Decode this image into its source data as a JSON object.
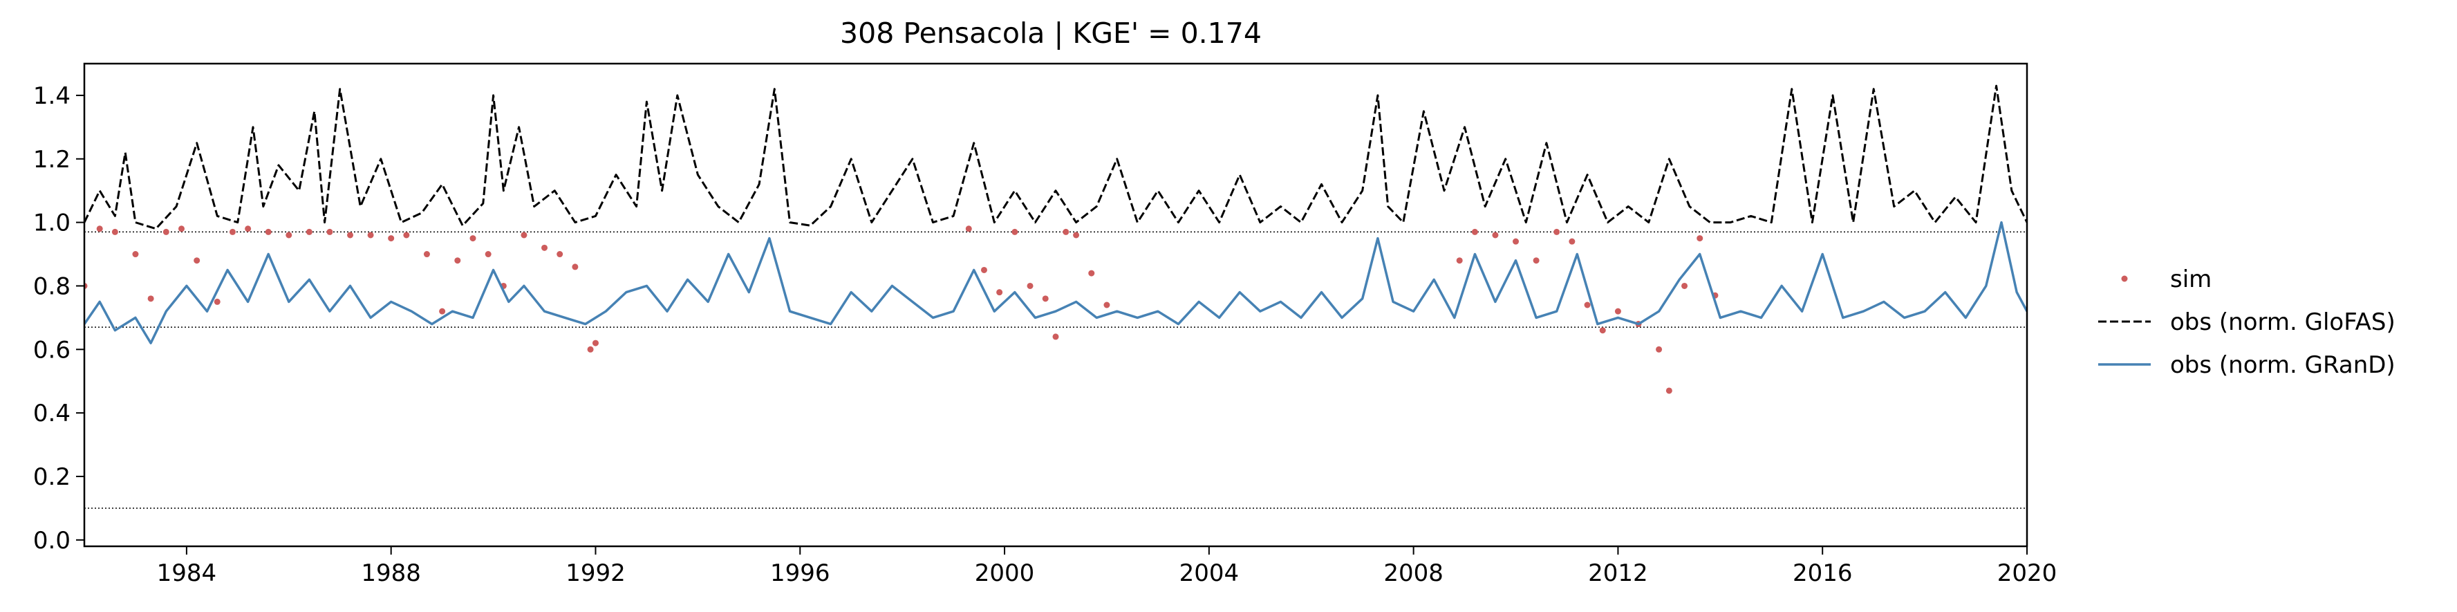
{
  "chart_data": {
    "type": "line",
    "title": "308  Pensacola | KGE' = 0.174",
    "xlabel": "",
    "ylabel": "",
    "xlim": [
      1982.0,
      2020.0
    ],
    "ylim": [
      -0.02,
      1.5
    ],
    "x_ticks": [
      1984,
      1988,
      1992,
      1996,
      2000,
      2004,
      2008,
      2012,
      2016,
      2020
    ],
    "x_tick_labels": [
      "1984",
      "1988",
      "1992",
      "1996",
      "2000",
      "2004",
      "2008",
      "2012",
      "2016",
      "2020"
    ],
    "y_ticks": [
      0.0,
      0.2,
      0.4,
      0.6,
      0.8,
      1.0,
      1.2,
      1.4
    ],
    "y_tick_labels": [
      "0.0",
      "0.2",
      "0.4",
      "0.6",
      "0.8",
      "1.0",
      "1.2",
      "1.4"
    ],
    "reference_lines": [
      0.97,
      0.67,
      0.1
    ],
    "grid": false,
    "legend_position": "outside-right",
    "legend": [
      {
        "label": "sim",
        "style": "dots",
        "color": "#cd5c5c"
      },
      {
        "label": "obs (norm. GloFAS)",
        "style": "dashed",
        "color": "#000000"
      },
      {
        "label": "obs (norm. GRanD)",
        "style": "solid",
        "color": "#4682b4"
      }
    ],
    "series": [
      {
        "name": "sim",
        "style": "dots",
        "color": "#cd5c5c",
        "x": [
          1982.0,
          1982.3,
          1982.6,
          1983.0,
          1983.3,
          1983.6,
          1983.9,
          1984.2,
          1984.6,
          1984.9,
          1985.2,
          1985.6,
          1986.0,
          1986.4,
          1986.8,
          1987.2,
          1987.6,
          1988.0,
          1988.3,
          1988.7,
          1989.0,
          1989.3,
          1989.6,
          1989.9,
          1990.2,
          1990.6,
          1991.0,
          1991.3,
          1991.6,
          1991.9,
          1992.0,
          1999.3,
          1999.6,
          1999.9,
          2000.2,
          2000.5,
          2000.8,
          2001.0,
          2001.2,
          2001.4,
          2001.7,
          2002.0,
          2008.9,
          2009.2,
          2009.6,
          2010.0,
          2010.4,
          2010.8,
          2011.1,
          2011.4,
          2011.7,
          2012.0,
          2012.4,
          2012.8,
          2013.0,
          2013.3,
          2013.6,
          2013.9
        ],
        "y": [
          0.8,
          0.98,
          0.97,
          0.9,
          0.76,
          0.97,
          0.98,
          0.88,
          0.75,
          0.97,
          0.98,
          0.97,
          0.96,
          0.97,
          0.97,
          0.96,
          0.96,
          0.95,
          0.96,
          0.9,
          0.72,
          0.88,
          0.95,
          0.9,
          0.8,
          0.96,
          0.92,
          0.9,
          0.86,
          0.6,
          0.62,
          0.98,
          0.85,
          0.78,
          0.97,
          0.8,
          0.76,
          0.64,
          0.97,
          0.96,
          0.84,
          0.74,
          0.88,
          0.97,
          0.96,
          0.94,
          0.88,
          0.97,
          0.94,
          0.74,
          0.66,
          0.72,
          0.68,
          0.6,
          0.47,
          0.8,
          0.95,
          0.77
        ]
      },
      {
        "name": "obs (norm. GloFAS)",
        "style": "dashed",
        "color": "#000000",
        "x": [
          1982.0,
          1982.3,
          1982.6,
          1982.8,
          1983.0,
          1983.4,
          1983.8,
          1984.2,
          1984.6,
          1985.0,
          1985.3,
          1985.5,
          1985.8,
          1986.2,
          1986.5,
          1986.7,
          1987.0,
          1987.4,
          1987.8,
          1988.2,
          1988.6,
          1989.0,
          1989.4,
          1989.8,
          1990.0,
          1990.2,
          1990.5,
          1990.8,
          1991.2,
          1991.6,
          1992.0,
          1992.4,
          1992.8,
          1993.0,
          1993.3,
          1993.6,
          1994.0,
          1994.4,
          1994.8,
          1995.2,
          1995.5,
          1995.8,
          1996.2,
          1996.6,
          1997.0,
          1997.4,
          1997.8,
          1998.2,
          1998.6,
          1999.0,
          1999.4,
          1999.8,
          2000.2,
          2000.6,
          2001.0,
          2001.4,
          2001.8,
          2002.2,
          2002.6,
          2003.0,
          2003.4,
          2003.8,
          2004.2,
          2004.6,
          2005.0,
          2005.4,
          2005.8,
          2006.2,
          2006.6,
          2007.0,
          2007.3,
          2007.5,
          2007.8,
          2008.2,
          2008.6,
          2009.0,
          2009.4,
          2009.8,
          2010.2,
          2010.6,
          2011.0,
          2011.4,
          2011.8,
          2012.2,
          2012.6,
          2013.0,
          2013.4,
          2013.8,
          2014.2,
          2014.6,
          2015.0,
          2015.4,
          2015.8,
          2016.2,
          2016.6,
          2017.0,
          2017.4,
          2017.8,
          2018.2,
          2018.6,
          2019.0,
          2019.4,
          2019.7,
          2020.0
        ],
        "y": [
          1.0,
          1.1,
          1.02,
          1.22,
          1.0,
          0.98,
          1.05,
          1.25,
          1.02,
          1.0,
          1.3,
          1.05,
          1.18,
          1.1,
          1.35,
          1.0,
          1.42,
          1.05,
          1.2,
          1.0,
          1.03,
          1.12,
          0.99,
          1.06,
          1.4,
          1.1,
          1.3,
          1.05,
          1.1,
          1.0,
          1.02,
          1.15,
          1.05,
          1.38,
          1.1,
          1.4,
          1.15,
          1.05,
          1.0,
          1.12,
          1.42,
          1.0,
          0.99,
          1.05,
          1.2,
          1.0,
          1.1,
          1.2,
          1.0,
          1.02,
          1.25,
          1.0,
          1.1,
          1.0,
          1.1,
          1.0,
          1.05,
          1.2,
          1.0,
          1.1,
          1.0,
          1.1,
          1.0,
          1.15,
          1.0,
          1.05,
          1.0,
          1.12,
          1.0,
          1.1,
          1.4,
          1.05,
          1.0,
          1.35,
          1.1,
          1.3,
          1.05,
          1.2,
          1.0,
          1.25,
          1.0,
          1.15,
          1.0,
          1.05,
          1.0,
          1.2,
          1.05,
          1.0,
          1.0,
          1.02,
          1.0,
          1.42,
          1.0,
          1.4,
          1.0,
          1.42,
          1.05,
          1.1,
          1.0,
          1.08,
          1.0,
          1.43,
          1.1,
          1.0
        ]
      },
      {
        "name": "obs (norm. GRanD)",
        "style": "solid",
        "color": "#4682b4",
        "x": [
          1982.0,
          1982.3,
          1982.6,
          1983.0,
          1983.3,
          1983.6,
          1984.0,
          1984.4,
          1984.8,
          1985.2,
          1985.6,
          1986.0,
          1986.4,
          1986.8,
          1987.2,
          1987.6,
          1988.0,
          1988.4,
          1988.8,
          1989.2,
          1989.6,
          1990.0,
          1990.3,
          1990.6,
          1991.0,
          1991.4,
          1991.8,
          1992.2,
          1992.6,
          1993.0,
          1993.4,
          1993.8,
          1994.2,
          1994.6,
          1995.0,
          1995.4,
          1995.8,
          1996.2,
          1996.6,
          1997.0,
          1997.4,
          1997.8,
          1998.2,
          1998.6,
          1999.0,
          1999.4,
          1999.8,
          2000.2,
          2000.6,
          2001.0,
          2001.4,
          2001.8,
          2002.2,
          2002.6,
          2003.0,
          2003.4,
          2003.8,
          2004.2,
          2004.6,
          2005.0,
          2005.4,
          2005.8,
          2006.2,
          2006.6,
          2007.0,
          2007.3,
          2007.6,
          2008.0,
          2008.4,
          2008.8,
          2009.2,
          2009.6,
          2010.0,
          2010.4,
          2010.8,
          2011.2,
          2011.6,
          2012.0,
          2012.4,
          2012.8,
          2013.2,
          2013.6,
          2014.0,
          2014.4,
          2014.8,
          2015.2,
          2015.6,
          2016.0,
          2016.4,
          2016.8,
          2017.2,
          2017.6,
          2018.0,
          2018.4,
          2018.8,
          2019.2,
          2019.5,
          2019.8,
          2020.0
        ],
        "y": [
          0.68,
          0.75,
          0.66,
          0.7,
          0.62,
          0.72,
          0.8,
          0.72,
          0.85,
          0.75,
          0.9,
          0.75,
          0.82,
          0.72,
          0.8,
          0.7,
          0.75,
          0.72,
          0.68,
          0.72,
          0.7,
          0.85,
          0.75,
          0.8,
          0.72,
          0.7,
          0.68,
          0.72,
          0.78,
          0.8,
          0.72,
          0.82,
          0.75,
          0.9,
          0.78,
          0.95,
          0.72,
          0.7,
          0.68,
          0.78,
          0.72,
          0.8,
          0.75,
          0.7,
          0.72,
          0.85,
          0.72,
          0.78,
          0.7,
          0.72,
          0.75,
          0.7,
          0.72,
          0.7,
          0.72,
          0.68,
          0.75,
          0.7,
          0.78,
          0.72,
          0.75,
          0.7,
          0.78,
          0.7,
          0.76,
          0.95,
          0.75,
          0.72,
          0.82,
          0.7,
          0.9,
          0.75,
          0.88,
          0.7,
          0.72,
          0.9,
          0.68,
          0.7,
          0.68,
          0.72,
          0.82,
          0.9,
          0.7,
          0.72,
          0.7,
          0.8,
          0.72,
          0.9,
          0.7,
          0.72,
          0.75,
          0.7,
          0.72,
          0.78,
          0.7,
          0.8,
          1.0,
          0.78,
          0.72
        ]
      }
    ]
  }
}
